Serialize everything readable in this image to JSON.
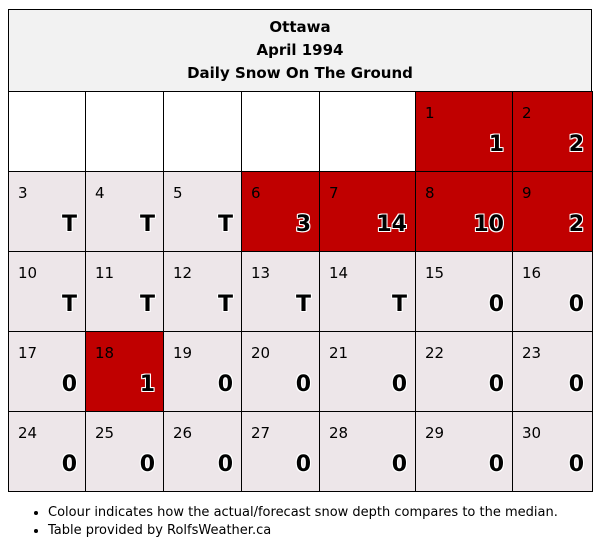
{
  "header": {
    "city": "Ottawa",
    "period": "April 1994",
    "subject": "Daily Snow On The Ground"
  },
  "colors": {
    "above_median": "#c00000",
    "neutral": "#ede6e9",
    "empty": "#ffffff"
  },
  "weeks": [
    [
      null,
      null,
      null,
      null,
      null,
      {
        "day": "1",
        "value": "1",
        "state": "red"
      },
      {
        "day": "2",
        "value": "2",
        "state": "red"
      }
    ],
    [
      {
        "day": "3",
        "value": "T",
        "state": "neutral"
      },
      {
        "day": "4",
        "value": "T",
        "state": "neutral"
      },
      {
        "day": "5",
        "value": "T",
        "state": "neutral"
      },
      {
        "day": "6",
        "value": "3",
        "state": "red"
      },
      {
        "day": "7",
        "value": "14",
        "state": "red"
      },
      {
        "day": "8",
        "value": "10",
        "state": "red"
      },
      {
        "day": "9",
        "value": "2",
        "state": "red"
      }
    ],
    [
      {
        "day": "10",
        "value": "T",
        "state": "neutral"
      },
      {
        "day": "11",
        "value": "T",
        "state": "neutral"
      },
      {
        "day": "12",
        "value": "T",
        "state": "neutral"
      },
      {
        "day": "13",
        "value": "T",
        "state": "neutral"
      },
      {
        "day": "14",
        "value": "T",
        "state": "neutral"
      },
      {
        "day": "15",
        "value": "0",
        "state": "neutral"
      },
      {
        "day": "16",
        "value": "0",
        "state": "neutral"
      }
    ],
    [
      {
        "day": "17",
        "value": "0",
        "state": "neutral"
      },
      {
        "day": "18",
        "value": "1",
        "state": "red"
      },
      {
        "day": "19",
        "value": "0",
        "state": "neutral"
      },
      {
        "day": "20",
        "value": "0",
        "state": "neutral"
      },
      {
        "day": "21",
        "value": "0",
        "state": "neutral"
      },
      {
        "day": "22",
        "value": "0",
        "state": "neutral"
      },
      {
        "day": "23",
        "value": "0",
        "state": "neutral"
      }
    ],
    [
      {
        "day": "24",
        "value": "0",
        "state": "neutral"
      },
      {
        "day": "25",
        "value": "0",
        "state": "neutral"
      },
      {
        "day": "26",
        "value": "0",
        "state": "neutral"
      },
      {
        "day": "27",
        "value": "0",
        "state": "neutral"
      },
      {
        "day": "28",
        "value": "0",
        "state": "neutral"
      },
      {
        "day": "29",
        "value": "0",
        "state": "neutral"
      },
      {
        "day": "30",
        "value": "0",
        "state": "neutral"
      }
    ]
  ],
  "notes": [
    "Colour indicates how the actual/forecast snow depth compares to the median.",
    "Table provided by RolfsWeather.ca"
  ]
}
